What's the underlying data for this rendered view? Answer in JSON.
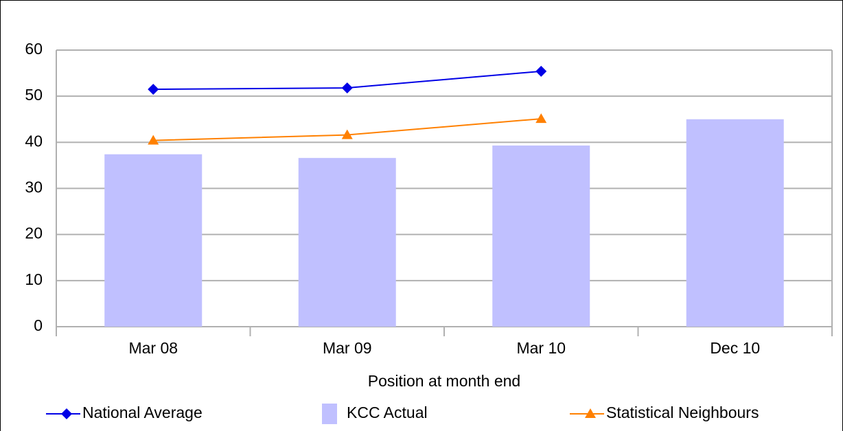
{
  "chart_data": {
    "type": "bar",
    "x_label": "Position at month end",
    "categories": [
      "Mar 08",
      "Mar 09",
      "Mar 10",
      "Dec 10"
    ],
    "series": [
      {
        "name": "National Average",
        "type": "line",
        "marker": "diamond",
        "color": "#0000e6",
        "values": [
          51.5,
          51.8,
          55.4,
          null
        ]
      },
      {
        "name": "KCC Actual",
        "type": "bar",
        "color": "#c0c0ff",
        "values": [
          37.4,
          36.6,
          39.3,
          45.0
        ]
      },
      {
        "name": "Statistical Neighbours",
        "type": "line",
        "marker": "triangle",
        "color": "#ff8000",
        "values": [
          40.4,
          41.6,
          45.1,
          null
        ]
      }
    ],
    "ylim": [
      0,
      60
    ],
    "yticks": [
      0,
      10,
      20,
      30,
      40,
      50,
      60
    ],
    "grid": true,
    "legend": "bottom"
  }
}
